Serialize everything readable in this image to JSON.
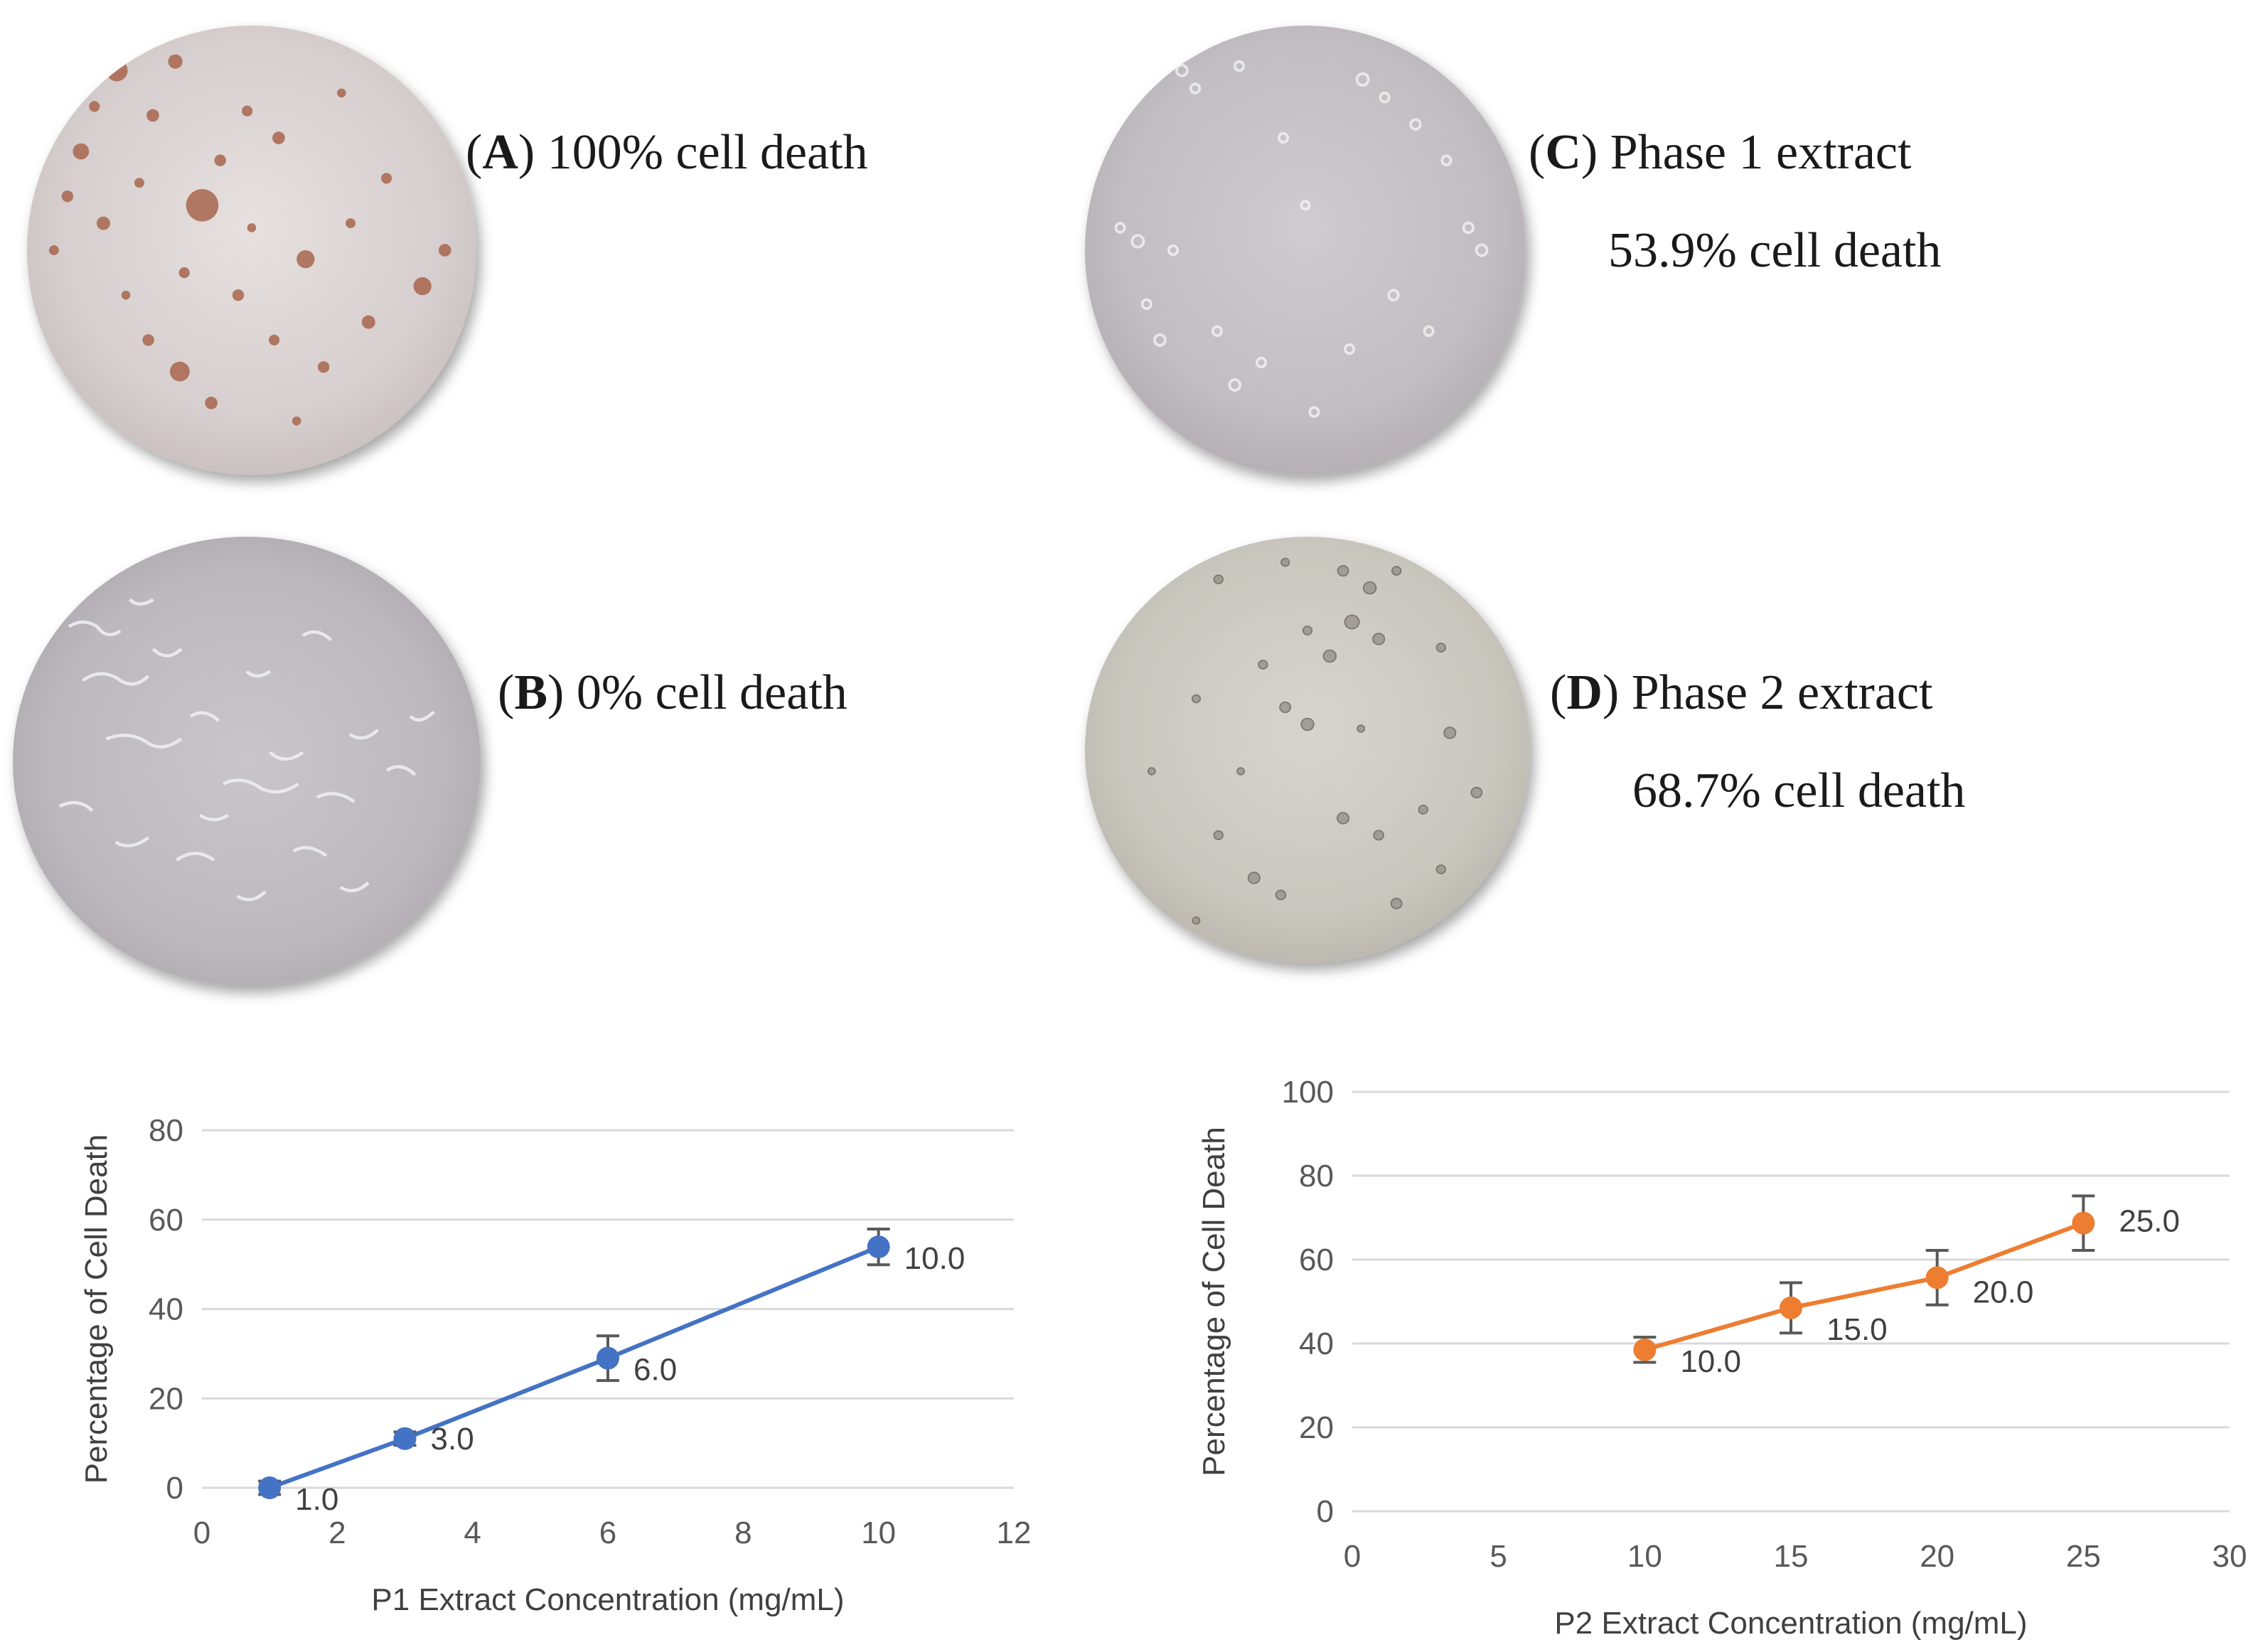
{
  "panels": [
    {
      "letter": "A",
      "line1": "100% cell death",
      "line2": ""
    },
    {
      "letter": "B",
      "line1": "0% cell death",
      "line2": ""
    },
    {
      "letter": "C",
      "line1": "Phase 1 extract",
      "line2": "53.9% cell death"
    },
    {
      "letter": "D",
      "line1": "Phase 2 extract",
      "line2": "68.7% cell death"
    }
  ],
  "colors": {
    "p1": "#4472C4",
    "p2": "#ED7D31",
    "grid": "#d9d9d9",
    "error": "#595959"
  },
  "chart_data": [
    {
      "type": "line",
      "title": "",
      "xlabel": "P1 Extract Concentration (mg/mL)",
      "ylabel": "Percentage of Cell Death",
      "xlim": [
        0,
        12
      ],
      "ylim": [
        0,
        80
      ],
      "xticks": [
        0,
        2,
        4,
        6,
        8,
        10,
        12
      ],
      "yticks": [
        0,
        20,
        40,
        60,
        80
      ],
      "series": [
        {
          "name": "P1",
          "x": [
            1,
            3,
            6,
            10
          ],
          "y": [
            0,
            11,
            29,
            53.9
          ],
          "error": [
            1.5,
            1.5,
            5,
            4
          ],
          "labels": [
            "1.0",
            "3.0",
            "6.0",
            "10.0"
          ]
        }
      ]
    },
    {
      "type": "line",
      "title": "",
      "xlabel": "P2 Extract Concentration (mg/mL)",
      "ylabel": "Percentage of Cell Death",
      "xlim": [
        0,
        30
      ],
      "ylim": [
        0,
        100
      ],
      "xticks": [
        0,
        5,
        10,
        15,
        20,
        25,
        30
      ],
      "yticks": [
        0,
        20,
        40,
        60,
        80,
        100
      ],
      "series": [
        {
          "name": "P2",
          "x": [
            10,
            15,
            20,
            25
          ],
          "y": [
            38.5,
            48.5,
            55.7,
            68.7
          ],
          "error": [
            3,
            6,
            6.5,
            6.5
          ],
          "labels": [
            "10.0",
            "15.0",
            "20.0",
            "25.0"
          ]
        }
      ]
    }
  ]
}
